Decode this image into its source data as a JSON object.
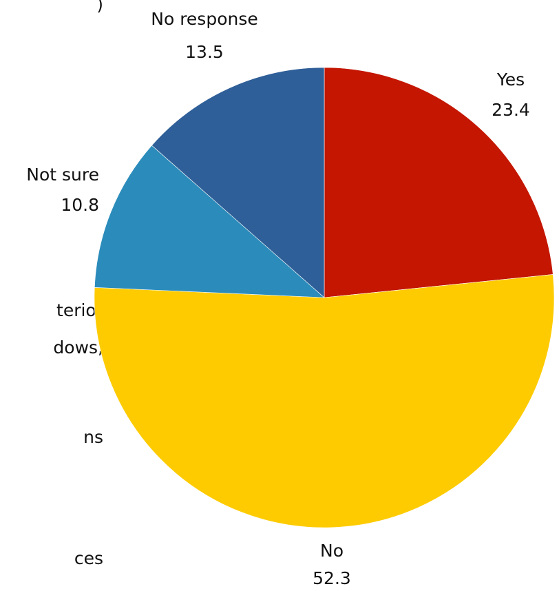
{
  "chart_data": {
    "type": "pie",
    "start_angle_deg": 0,
    "direction": "clockwise",
    "slices": [
      {
        "label": "Yes",
        "value": 23.4,
        "value_label": "23.4",
        "color": "#c41600"
      },
      {
        "label": "No",
        "value": 52.3,
        "value_label": "52.3",
        "color": "#fdcb00"
      },
      {
        "label": "Not sure",
        "value": 10.8,
        "value_label": "10.8",
        "color": "#2b8cbb"
      },
      {
        "label": "No response",
        "value": 13.5,
        "value_label": "13.5",
        "color": "#2f5f98"
      }
    ]
  },
  "left_text_fragments": [
    ")",
    "terior",
    "dows,",
    "ns",
    "ces"
  ]
}
